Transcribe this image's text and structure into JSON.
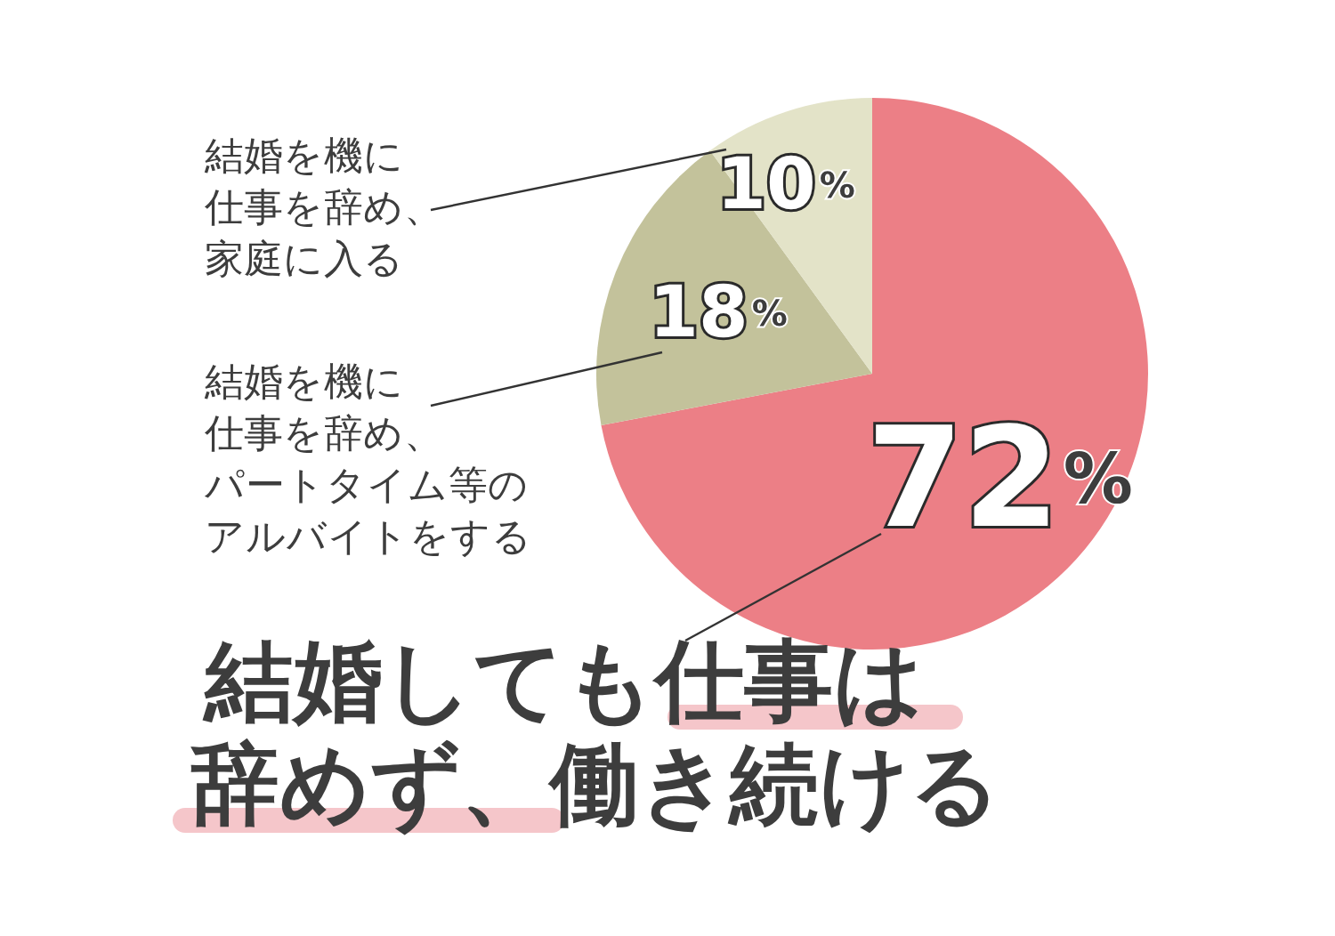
{
  "chart_data": {
    "type": "pie",
    "categories": [
      "結婚しても仕事は辞めず、働き続ける",
      "結婚を機に仕事を辞め、パートタイム等のアルバイトをする",
      "結婚を機に仕事を辞め、家庭に入る"
    ],
    "values": [
      72,
      18,
      10
    ],
    "value_labels": [
      "72%",
      "18%",
      "10%"
    ],
    "colors": [
      "#ec7f86",
      "#c3c29b",
      "#e3e3c8"
    ]
  }
}
